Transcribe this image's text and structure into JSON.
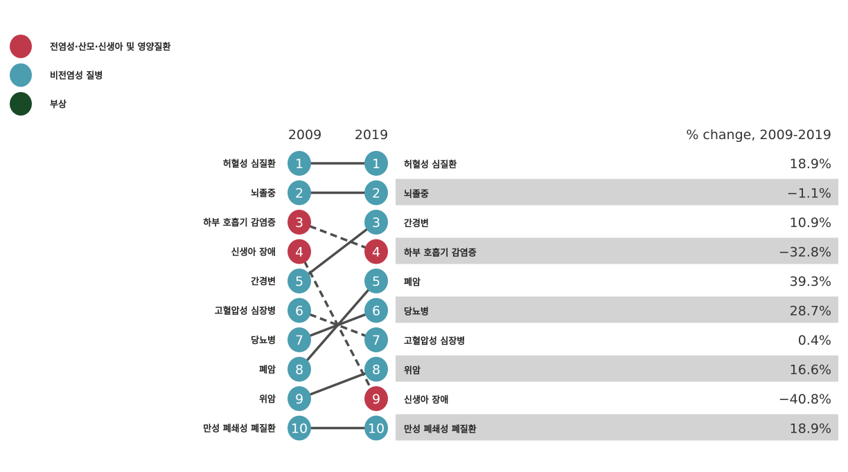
{
  "chart_data": {
    "type": "slope",
    "legend": {
      "placement": "top-left",
      "items": [
        {
          "label": "전염성·산모·신생아 및 영양질환",
          "color": "#c0394a"
        },
        {
          "label": "비전염성 질병",
          "color": "#4b9db0"
        },
        {
          "label": "부상",
          "color": "#174a25"
        }
      ]
    },
    "x_labels": [
      "2009",
      "2019"
    ],
    "change_header": "% change, 2009-2019",
    "causes": [
      {
        "name": "허혈성 심질환",
        "group": 1,
        "rank_2009": 1,
        "rank_2019": 1,
        "change": "18.9%"
      },
      {
        "name": "뇌졸중",
        "group": 1,
        "rank_2009": 2,
        "rank_2019": 2,
        "change": "−1.1%"
      },
      {
        "name": "하부 호흡기 감염증",
        "group": 0,
        "rank_2009": 3,
        "rank_2019": 4,
        "change": "−32.8%"
      },
      {
        "name": "신생아 장애",
        "group": 0,
        "rank_2009": 4,
        "rank_2019": 9,
        "change": "−40.8%"
      },
      {
        "name": "간경변",
        "group": 1,
        "rank_2009": 5,
        "rank_2019": 3,
        "change": "10.9%"
      },
      {
        "name": "고혈압성 심장병",
        "group": 1,
        "rank_2009": 6,
        "rank_2019": 7,
        "change": "0.4%"
      },
      {
        "name": "당뇨병",
        "group": 1,
        "rank_2009": 7,
        "rank_2019": 6,
        "change": "28.7%"
      },
      {
        "name": "폐암",
        "group": 1,
        "rank_2009": 8,
        "rank_2019": 5,
        "change": "39.3%"
      },
      {
        "name": "위암",
        "group": 1,
        "rank_2009": 9,
        "rank_2019": 8,
        "change": "16.6%"
      },
      {
        "name": "만성 폐쇄성 폐질환",
        "group": 1,
        "rank_2009": 10,
        "rank_2019": 10,
        "change": "18.9%"
      }
    ],
    "line_color": "#4d4d4d",
    "row_band_color": "#d3d3d3"
  }
}
